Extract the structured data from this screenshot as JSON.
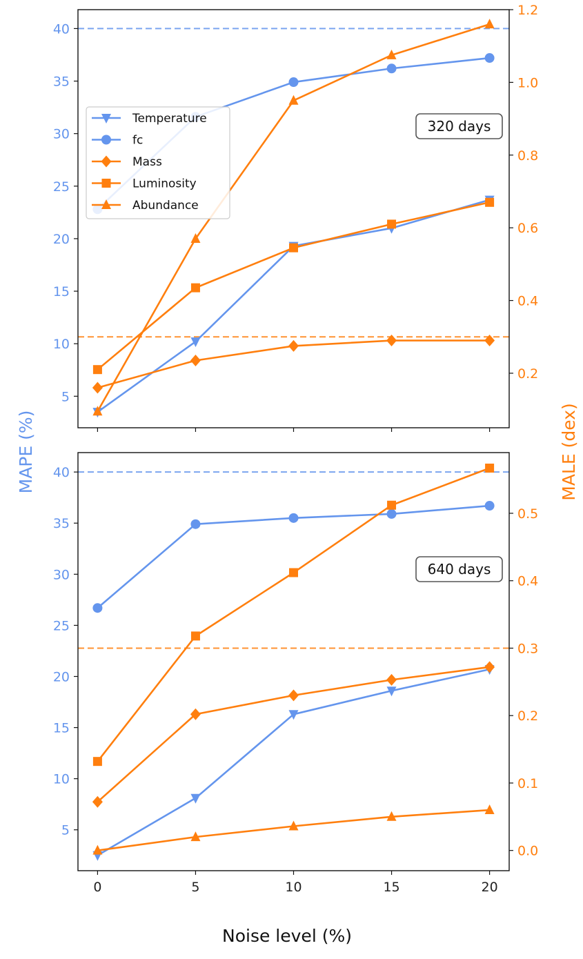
{
  "chart_data": {
    "type": "line",
    "xlabel": "Noise level (%)",
    "ylabel_left": "MAPE (%)",
    "ylabel_right": "MALE (dex)",
    "x": [
      0,
      5,
      10,
      15,
      20
    ],
    "x_ticks": [
      "0",
      "5",
      "10",
      "15",
      "20"
    ],
    "colors": {
      "left": "#6495ED",
      "right": "#FF7F0E"
    },
    "legend": {
      "placement": "upper-left of top panel",
      "entries": [
        {
          "name": "Temperature",
          "marker": "triangle-down",
          "color": "#6495ED"
        },
        {
          "name": "fc",
          "marker": "circle",
          "color": "#6495ED"
        },
        {
          "name": "Mass",
          "marker": "diamond",
          "color": "#FF7F0E"
        },
        {
          "name": "Luminosity",
          "marker": "square",
          "color": "#FF7F0E"
        },
        {
          "name": "Abundance",
          "marker": "triangle-up",
          "color": "#FF7F0E"
        }
      ]
    },
    "panels": [
      {
        "annotation": "320 days",
        "ylim_left": [
          2.0,
          41.8
        ],
        "ylim_right": [
          0.05,
          1.2
        ],
        "left_ticks": [
          "5",
          "10",
          "15",
          "20",
          "25",
          "30",
          "35",
          "40"
        ],
        "right_ticks": [
          "0.2",
          "0.4",
          "0.6",
          "0.8",
          "1.0",
          "1.2"
        ],
        "hline_left": 40,
        "hline_right": 0.3,
        "series": [
          {
            "name": "Temperature",
            "axis": "left",
            "values": [
              3.5,
              10.2,
              19.3,
              21.0,
              23.7
            ]
          },
          {
            "name": "fc",
            "axis": "left",
            "values": [
              22.8,
              31.6,
              34.9,
              36.2,
              37.2
            ]
          },
          {
            "name": "Mass",
            "axis": "right",
            "values": [
              0.16,
              0.235,
              0.275,
              0.29,
              0.29
            ]
          },
          {
            "name": "Luminosity",
            "axis": "right",
            "values": [
              0.21,
              0.435,
              0.545,
              0.61,
              0.67
            ]
          },
          {
            "name": "Abundance",
            "axis": "right",
            "values": [
              0.095,
              0.57,
              0.95,
              1.075,
              1.16
            ]
          }
        ]
      },
      {
        "annotation": "640 days",
        "ylim_left": [
          1.0,
          41.9
        ],
        "ylim_right": [
          -0.03,
          0.59
        ],
        "left_ticks": [
          "5",
          "10",
          "15",
          "20",
          "25",
          "30",
          "35",
          "40"
        ],
        "right_ticks": [
          "0.0",
          "0.1",
          "0.2",
          "0.3",
          "0.4",
          "0.5"
        ],
        "hline_left": 40,
        "hline_right": 0.3,
        "series": [
          {
            "name": "Temperature",
            "axis": "left",
            "values": [
              2.5,
              8.1,
              16.3,
              18.6,
              20.7
            ]
          },
          {
            "name": "fc",
            "axis": "left",
            "values": [
              26.7,
              34.9,
              35.5,
              35.9,
              36.7
            ]
          },
          {
            "name": "Mass",
            "axis": "right",
            "values": [
              0.072,
              0.202,
              0.23,
              0.253,
              0.272
            ]
          },
          {
            "name": "Luminosity",
            "axis": "right",
            "values": [
              0.132,
              0.318,
              0.412,
              0.512,
              0.567
            ]
          },
          {
            "name": "Abundance",
            "axis": "right",
            "values": [
              0.0,
              0.02,
              0.036,
              0.05,
              0.06
            ]
          }
        ]
      }
    ]
  }
}
